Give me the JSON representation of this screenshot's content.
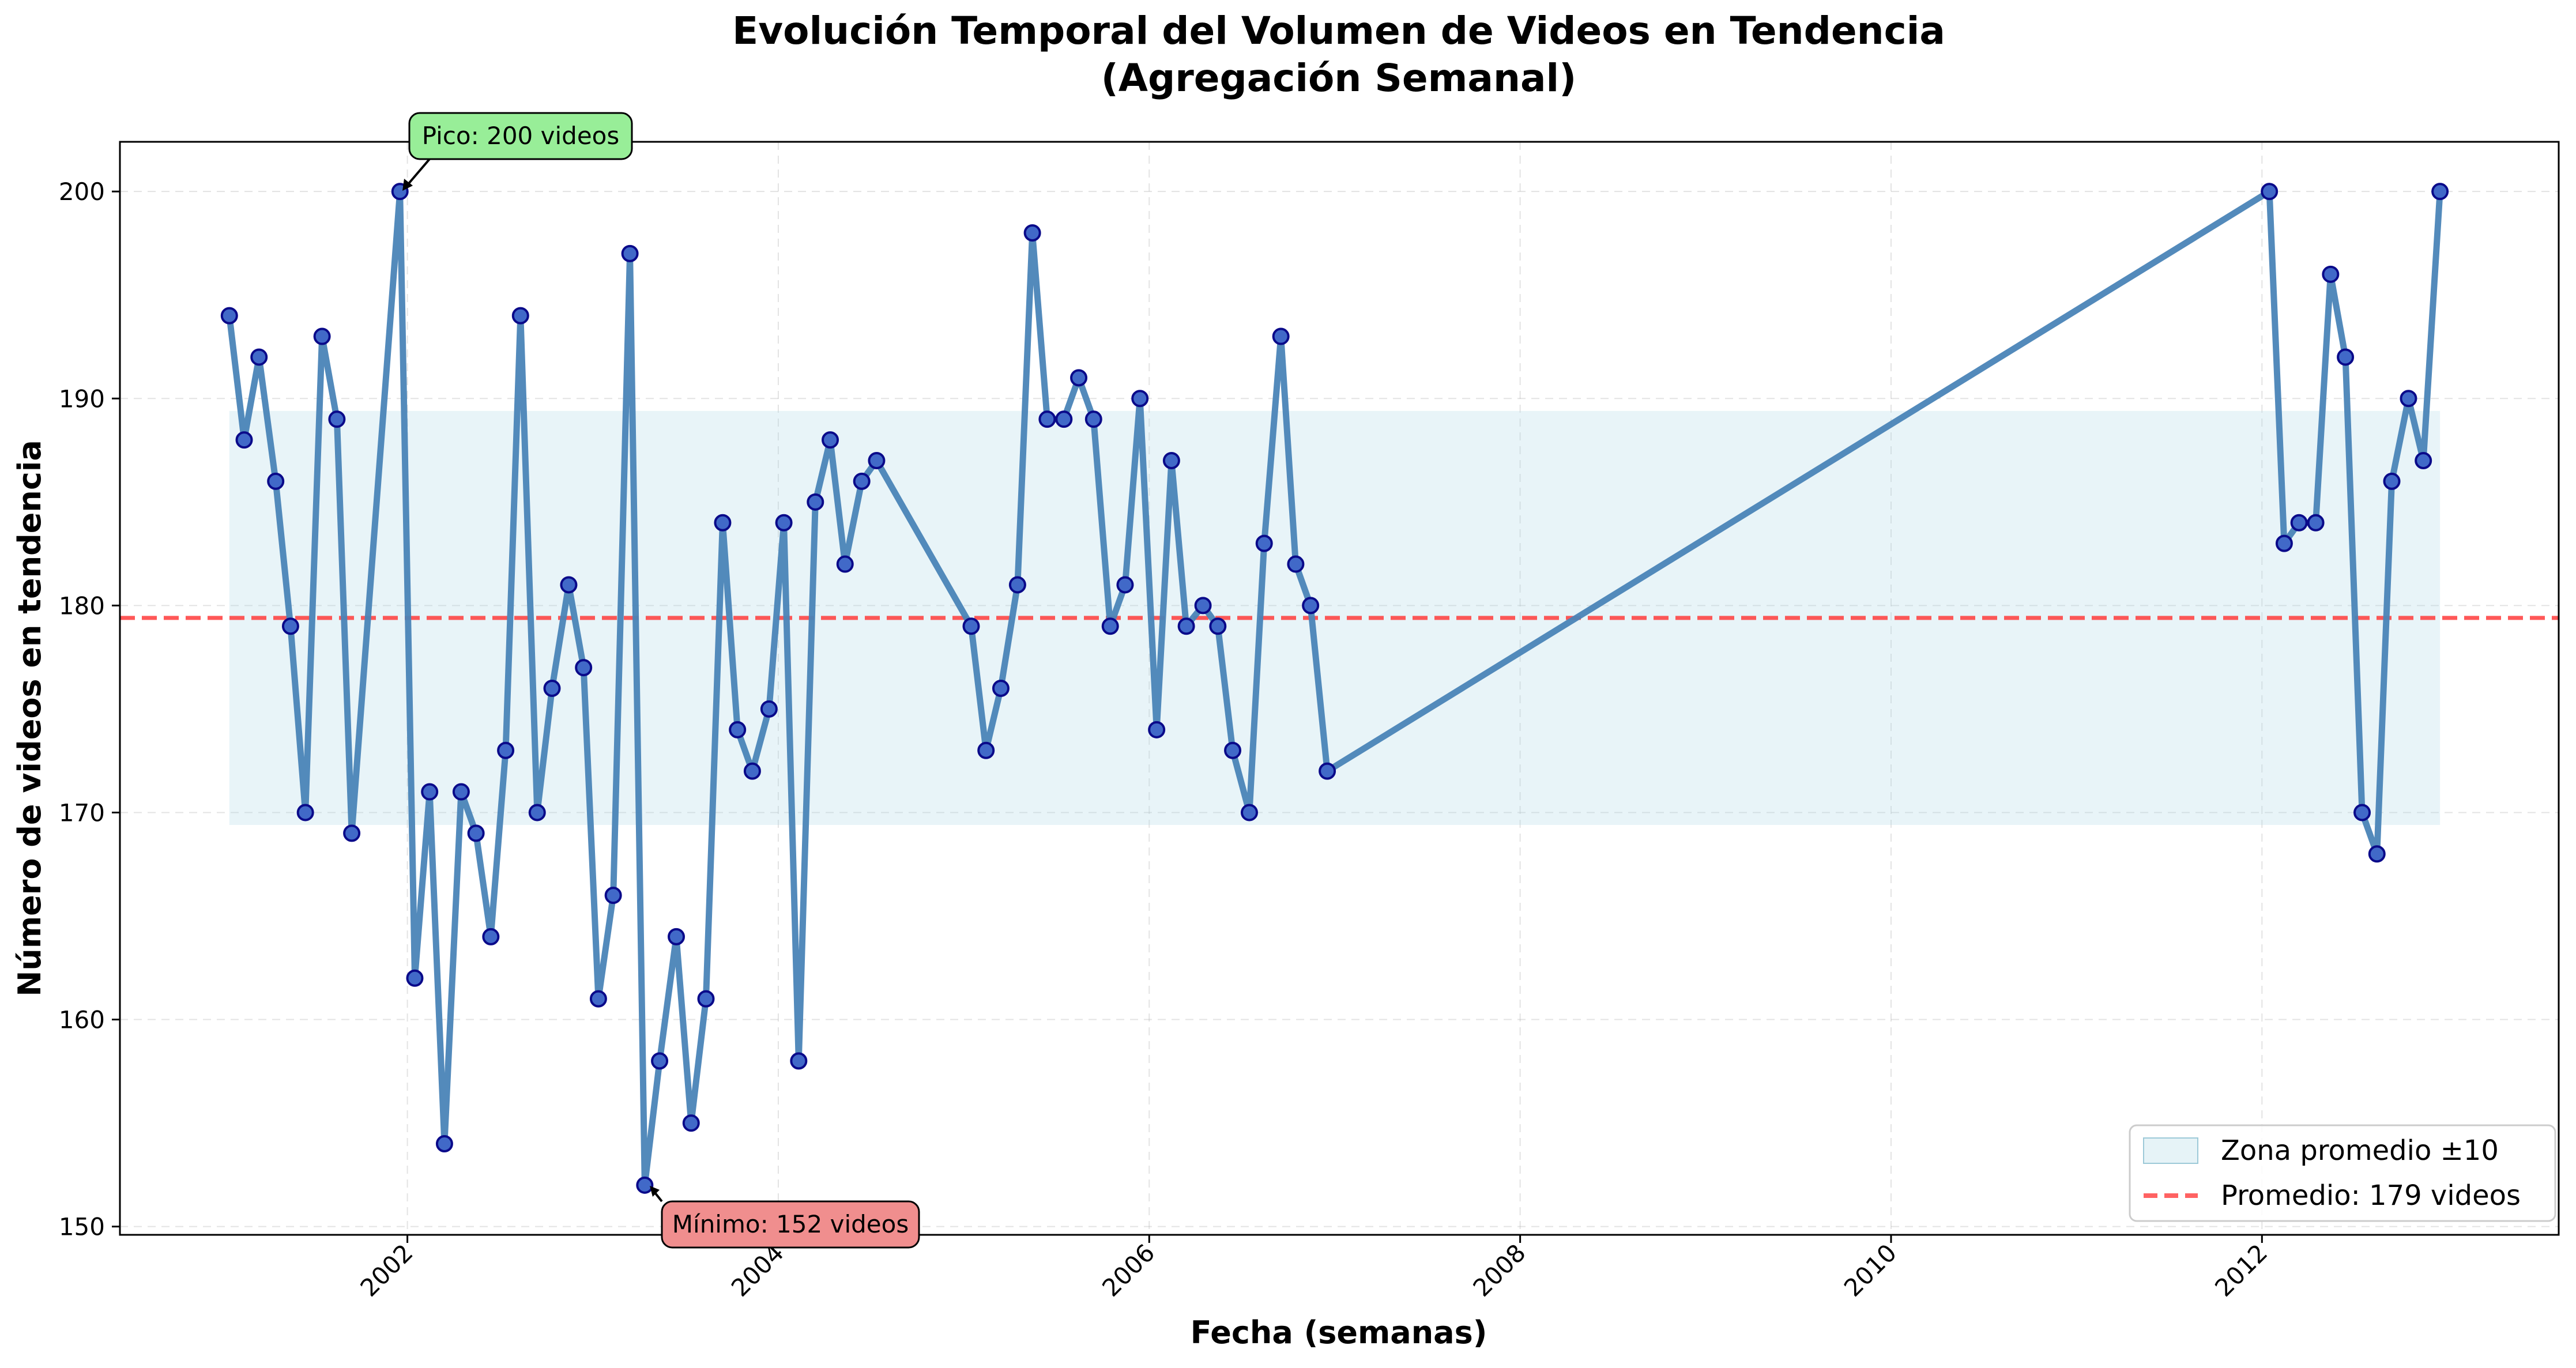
{
  "chart_data": {
    "type": "line",
    "title": "Evolución Temporal del Volumen de Videos en Tendencia",
    "subtitle": "(Agregación Semanal)",
    "xlabel": "Fecha (semanas)",
    "ylabel": "Número de videos en tendencia",
    "xlim": [
      2000.45,
      2013.6
    ],
    "ylim": [
      149.6,
      202.4
    ],
    "x_ticks": [
      2002,
      2004,
      2006,
      2008,
      2010,
      2012
    ],
    "x_tick_labels": [
      "2002",
      "2004",
      "2006",
      "2008",
      "2010",
      "2012"
    ],
    "y_ticks": [
      150,
      160,
      170,
      180,
      190,
      200
    ],
    "y_tick_labels": [
      "150",
      "160",
      "170",
      "180",
      "190",
      "200"
    ],
    "grid": true,
    "series": [
      {
        "color": "#4a84b7",
        "marker_color": "#4169c8",
        "points": [
          [
            2001.04,
            194
          ],
          [
            2001.12,
            188
          ],
          [
            2001.2,
            192
          ],
          [
            2001.29,
            186
          ],
          [
            2001.37,
            179
          ],
          [
            2001.45,
            170
          ],
          [
            2001.54,
            193
          ],
          [
            2001.62,
            189
          ],
          [
            2001.7,
            169
          ],
          [
            2001.96,
            200
          ],
          [
            2002.04,
            162
          ],
          [
            2002.12,
            171
          ],
          [
            2002.2,
            154
          ],
          [
            2002.29,
            171
          ],
          [
            2002.37,
            169
          ],
          [
            2002.45,
            164
          ],
          [
            2002.53,
            173
          ],
          [
            2002.61,
            194
          ],
          [
            2002.7,
            170
          ],
          [
            2002.78,
            176
          ],
          [
            2002.87,
            181
          ],
          [
            2002.95,
            177
          ],
          [
            2003.03,
            161
          ],
          [
            2003.11,
            166
          ],
          [
            2003.2,
            197
          ],
          [
            2003.28,
            152
          ],
          [
            2003.36,
            158
          ],
          [
            2003.45,
            164
          ],
          [
            2003.53,
            155
          ],
          [
            2003.61,
            161
          ],
          [
            2003.7,
            184
          ],
          [
            2003.78,
            174
          ],
          [
            2003.86,
            172
          ],
          [
            2003.95,
            175
          ],
          [
            2004.03,
            184
          ],
          [
            2004.11,
            158
          ],
          [
            2004.2,
            185
          ],
          [
            2004.28,
            188
          ],
          [
            2004.36,
            182
          ],
          [
            2004.45,
            186
          ],
          [
            2004.53,
            187
          ],
          [
            2005.04,
            179
          ],
          [
            2005.12,
            173
          ],
          [
            2005.2,
            176
          ],
          [
            2005.29,
            181
          ],
          [
            2005.37,
            198
          ],
          [
            2005.45,
            189
          ],
          [
            2005.54,
            189
          ],
          [
            2005.62,
            191
          ],
          [
            2005.7,
            189
          ],
          [
            2005.79,
            179
          ],
          [
            2005.87,
            181
          ],
          [
            2005.95,
            190
          ],
          [
            2006.04,
            174
          ],
          [
            2006.12,
            187
          ],
          [
            2006.2,
            179
          ],
          [
            2006.29,
            180
          ],
          [
            2006.37,
            179
          ],
          [
            2006.45,
            173
          ],
          [
            2006.54,
            170
          ],
          [
            2006.62,
            183
          ],
          [
            2006.71,
            193
          ],
          [
            2006.79,
            182
          ],
          [
            2006.87,
            180
          ],
          [
            2006.96,
            172
          ],
          [
            2012.04,
            200
          ],
          [
            2012.12,
            183
          ],
          [
            2012.2,
            184
          ],
          [
            2012.29,
            184
          ],
          [
            2012.37,
            196
          ],
          [
            2012.45,
            192
          ],
          [
            2012.54,
            170
          ],
          [
            2012.62,
            168
          ],
          [
            2012.7,
            186
          ],
          [
            2012.79,
            190
          ],
          [
            2012.87,
            187
          ],
          [
            2012.96,
            200
          ]
        ]
      }
    ],
    "band": {
      "x_range": [
        2001.04,
        2012.96
      ],
      "y_range": [
        169.4,
        189.4
      ],
      "color": "#add8e6"
    },
    "mean_line": {
      "y": 179.4,
      "color": "#ff3b3b"
    },
    "legend": {
      "position": "bottom-right",
      "entries": [
        {
          "label": "Zona promedio ±10",
          "kind": "band",
          "color": "#add8e6"
        },
        {
          "label": "Promedio: 179 videos",
          "kind": "dashed-line",
          "color": "#ff3b3b"
        }
      ]
    },
    "annotations": [
      {
        "text": "Pico: 200 videos",
        "target": [
          2001.96,
          200
        ],
        "box_color": "#98ee98"
      },
      {
        "text": "Mínimo: 152 videos",
        "target": [
          2003.28,
          152
        ],
        "box_color": "#f08e8e"
      }
    ]
  }
}
